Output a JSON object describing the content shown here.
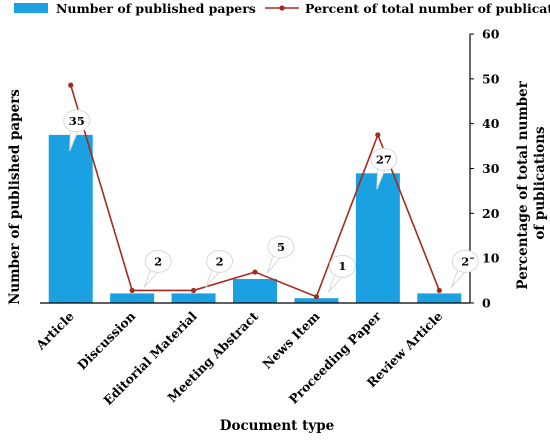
{
  "chart_data": {
    "type": "bar",
    "categories": [
      "Article",
      "Discussion",
      "Editorial Material",
      "Meeting Abstract",
      "News Item",
      "Proceeding Paper",
      "Review Article"
    ],
    "series": [
      {
        "name": "Number of published papers",
        "type": "bar",
        "axis": "left",
        "color": "#1BA0E2",
        "values": [
          35,
          2,
          2,
          5,
          1,
          27,
          2
        ]
      },
      {
        "name": "Percent of total number of publications",
        "type": "line",
        "axis": "right",
        "color": "#A52A1E",
        "values": [
          48.6,
          2.8,
          2.8,
          6.9,
          1.4,
          37.5,
          2.8
        ]
      }
    ],
    "data_labels": [
      "35",
      "2",
      "2",
      "5",
      "1",
      "27",
      "2"
    ],
    "xlabel": "Document type",
    "ylabel_left": "Number of published papers",
    "ylabel_right": "Percentage of total number of publications",
    "ylabel_right_lines": [
      "Percentage of total number",
      "of publications"
    ],
    "ylim_left": [
      0,
      56
    ],
    "ylim_right": [
      0,
      60
    ],
    "yticks_right": [
      "0",
      "10",
      "20",
      "30",
      "40",
      "50",
      "60"
    ],
    "grid": false,
    "legend_position": "top"
  }
}
